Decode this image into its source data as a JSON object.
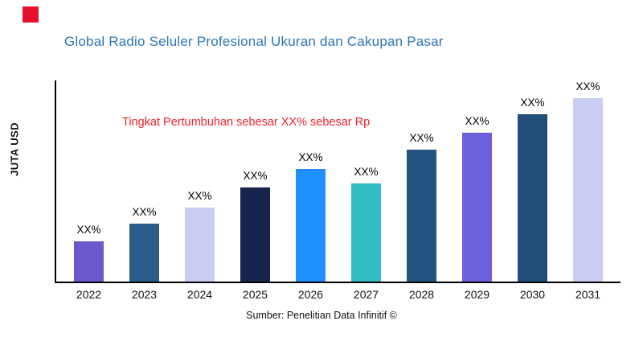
{
  "logo": {
    "color": "#E8112D"
  },
  "header": {
    "title": "Global Radio Seluler Profesional Ukuran dan Cakupan Pasar",
    "title_color": "#2E75B6"
  },
  "annotation": {
    "text": "Tingkat Pertumbuhan sebesar XX% sebesar Rp",
    "color": "#F1222B"
  },
  "chart_data": {
    "type": "bar",
    "title": "Global Radio Seluler Profesional Ukuran dan Cakupan Pasar",
    "xlabel": "",
    "ylabel": "JUTA USD",
    "categories": [
      "2022",
      "2023",
      "2024",
      "2025",
      "2026",
      "2027",
      "2028",
      "2029",
      "2030",
      "2031"
    ],
    "values": [
      50,
      72,
      92,
      117,
      140,
      122,
      164,
      185,
      208,
      232
    ],
    "bar_labels": [
      "XX%",
      "XX%",
      "XX%",
      "XX%",
      "XX%",
      "XX%",
      "XX%",
      "XX%",
      "XX%",
      "XX%"
    ],
    "bar_colors": [
      "#6A5ACD",
      "#2B5D8A",
      "#C9CDF3",
      "#17244E",
      "#1E90FF",
      "#31BFC4",
      "#235480",
      "#6D60DB",
      "#1F4E79",
      "#C9CDF3"
    ],
    "ylim": [
      0,
      250
    ],
    "grid": false,
    "legend": false,
    "annotation": "Tingkat Pertumbuhan sebesar XX% sebesar Rp"
  },
  "footer": {
    "source": "Sumber: Penelitian Data Infinitif ©"
  }
}
